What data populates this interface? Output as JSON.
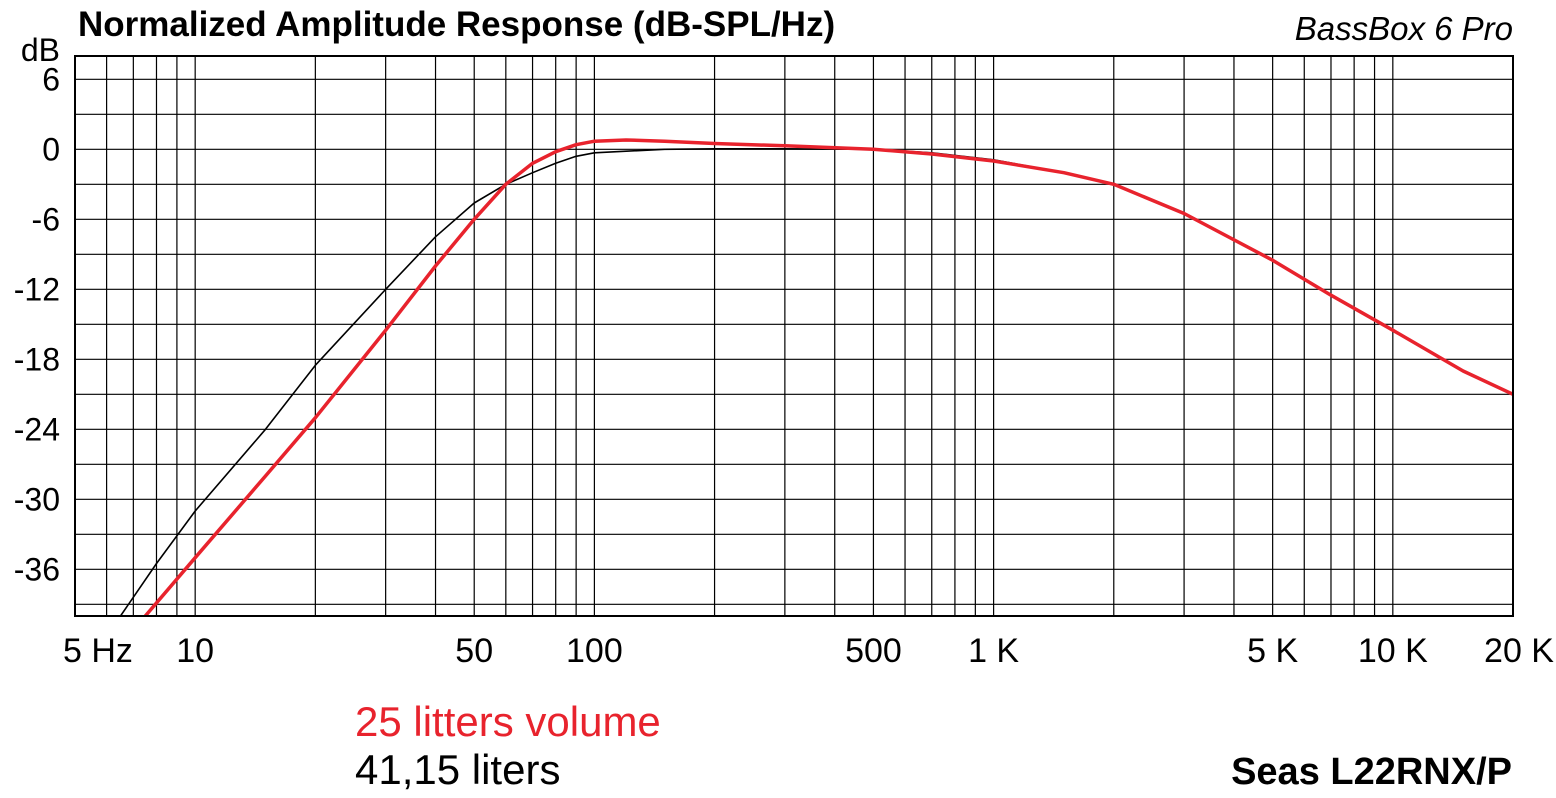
{
  "chart_data": {
    "type": "line",
    "title": "Normalized Amplitude Response (dB-SPL/Hz)",
    "watermark": "BassBox 6 Pro",
    "driver": "Seas L22RNX/P",
    "x_scale": "log",
    "xlim": [
      5,
      20000
    ],
    "ylim": [
      -40,
      8
    ],
    "grid": true,
    "y_tick_labels": [
      "dB",
      "6",
      "0",
      "-6",
      "-12",
      "-18",
      "-24",
      "-30",
      "-36"
    ],
    "y_tick_values": [
      6,
      0,
      -6,
      -12,
      -18,
      -24,
      -30,
      -36
    ],
    "x_tick_labels": [
      "5 Hz",
      "10",
      "50",
      "100",
      "500",
      "1 K",
      "5 K",
      "10 K",
      "20 K"
    ],
    "x_tick_values": [
      5,
      10,
      50,
      100,
      500,
      1000,
      5000,
      10000,
      20000
    ],
    "series": [
      {
        "name": "25 litters volume",
        "color": "#e8232d",
        "x": [
          7.5,
          10,
          15,
          20,
          30,
          40,
          50,
          60,
          70,
          80,
          90,
          100,
          120,
          150,
          200,
          300,
          500,
          700,
          1000,
          1500,
          2000,
          3000,
          5000,
          7000,
          10000,
          15000,
          20000
        ],
        "y": [
          -40,
          -35,
          -28,
          -23,
          -15.5,
          -10,
          -6,
          -3,
          -1.2,
          -0.2,
          0.4,
          0.7,
          0.8,
          0.7,
          0.5,
          0.3,
          0,
          -0.4,
          -1,
          -2,
          -3,
          -5.5,
          -9.5,
          -12.5,
          -15.5,
          -19,
          -21
        ]
      },
      {
        "name": "41,15 liters",
        "color": "#000000",
        "x": [
          6.5,
          8,
          10,
          15,
          20,
          30,
          40,
          50,
          60,
          70,
          80,
          90,
          100,
          150,
          200,
          300,
          500,
          700,
          1000,
          1500,
          2000,
          3000,
          5000,
          7000,
          10000,
          15000,
          20000
        ],
        "y": [
          -40,
          -35.5,
          -31,
          -24,
          -18.5,
          -12,
          -7.5,
          -4.6,
          -3,
          -2,
          -1.2,
          -0.6,
          -0.3,
          0,
          0.05,
          0.05,
          0,
          -0.3,
          -0.9,
          -2,
          -3,
          -5.5,
          -9.5,
          -12.5,
          -15.5,
          -19,
          -21
        ]
      }
    ]
  }
}
